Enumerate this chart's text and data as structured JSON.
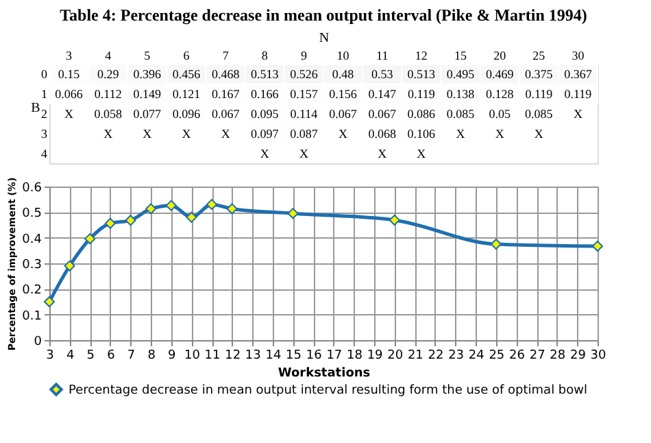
{
  "chart_data": [
    {
      "type": "heatmap",
      "title": "Table 4: Percentage decrease in mean output interval (Pike & Martin 1994)",
      "xlabel": "N",
      "ylabel": "B",
      "categories": [
        "3",
        "4",
        "5",
        "6",
        "7",
        "8",
        "9",
        "10",
        "11",
        "12",
        "15",
        "20",
        "25",
        "30"
      ],
      "y_categories": [
        "0",
        "1",
        "2",
        "3",
        "4"
      ],
      "cells": [
        [
          0.15,
          0.29,
          0.396,
          0.456,
          0.468,
          0.513,
          0.526,
          0.48,
          0.53,
          0.513,
          0.495,
          0.469,
          0.375,
          0.367
        ],
        [
          0.066,
          0.112,
          0.149,
          0.121,
          0.167,
          0.166,
          0.157,
          0.156,
          0.147,
          0.119,
          0.138,
          0.128,
          0.119,
          0.119
        ],
        [
          null,
          0.058,
          0.077,
          0.096,
          0.067,
          0.095,
          0.114,
          0.067,
          0.067,
          0.086,
          0.085,
          0.05,
          0.085,
          null
        ],
        [
          null,
          null,
          null,
          null,
          null,
          0.097,
          0.087,
          null,
          0.068,
          0.106,
          null,
          null,
          null,
          null
        ],
        [
          null,
          null,
          null,
          null,
          null,
          null,
          null,
          null,
          null,
          null,
          null,
          null,
          null,
          null
        ]
      ],
      "cell_labels": [
        [
          "0.15",
          "0.29",
          "0.396",
          "0.456",
          "0.468",
          "0.513",
          "0.526",
          "0.48",
          "0.53",
          "0.513",
          "0.495",
          "0.469",
          "0.375",
          "0.367"
        ],
        [
          "0.066",
          "0.112",
          "0.149",
          "0.121",
          "0.167",
          "0.166",
          "0.157",
          "0.156",
          "0.147",
          "0.119",
          "0.138",
          "0.128",
          "0.119",
          "0.119"
        ],
        [
          "X",
          "0.058",
          "0.077",
          "0.096",
          "0.067",
          "0.095",
          "0.114",
          "0.067",
          "0.067",
          "0.086",
          "0.085",
          "0.05",
          "0.085",
          "X"
        ],
        [
          null,
          "X",
          "X",
          "X",
          "X",
          "0.097",
          "0.087",
          "X",
          "0.068",
          "0.106",
          "X",
          "X",
          "X",
          null
        ],
        [
          null,
          null,
          null,
          null,
          null,
          "X",
          "X",
          null,
          "X",
          "X",
          null,
          null,
          null,
          null
        ]
      ]
    },
    {
      "type": "line",
      "xlabel": "Workstations",
      "ylabel": "Percentage of improvement (%)",
      "x": [
        3,
        4,
        5,
        6,
        7,
        8,
        9,
        10,
        11,
        12,
        15,
        20,
        25,
        30
      ],
      "series": [
        {
          "name": "Percentage decrease in mean output interval resulting form the use of optimal bowl",
          "color": "#1f6fb0",
          "values": [
            0.15,
            0.29,
            0.396,
            0.456,
            0.468,
            0.513,
            0.526,
            0.48,
            0.53,
            0.513,
            0.495,
            0.469,
            0.375,
            0.367
          ]
        }
      ],
      "xlim": [
        3,
        30
      ],
      "xticks": [
        3,
        4,
        5,
        6,
        7,
        8,
        9,
        10,
        11,
        12,
        13,
        14,
        15,
        16,
        17,
        18,
        19,
        20,
        21,
        22,
        23,
        24,
        25,
        26,
        27,
        28,
        29,
        30
      ],
      "ylim": [
        0,
        0.6
      ],
      "yticks": [
        0,
        0.1,
        0.2,
        0.3,
        0.4,
        0.5,
        0.6
      ],
      "grid": true,
      "legend": "bottom",
      "marker": "diamond",
      "line_style": "solid"
    }
  ]
}
